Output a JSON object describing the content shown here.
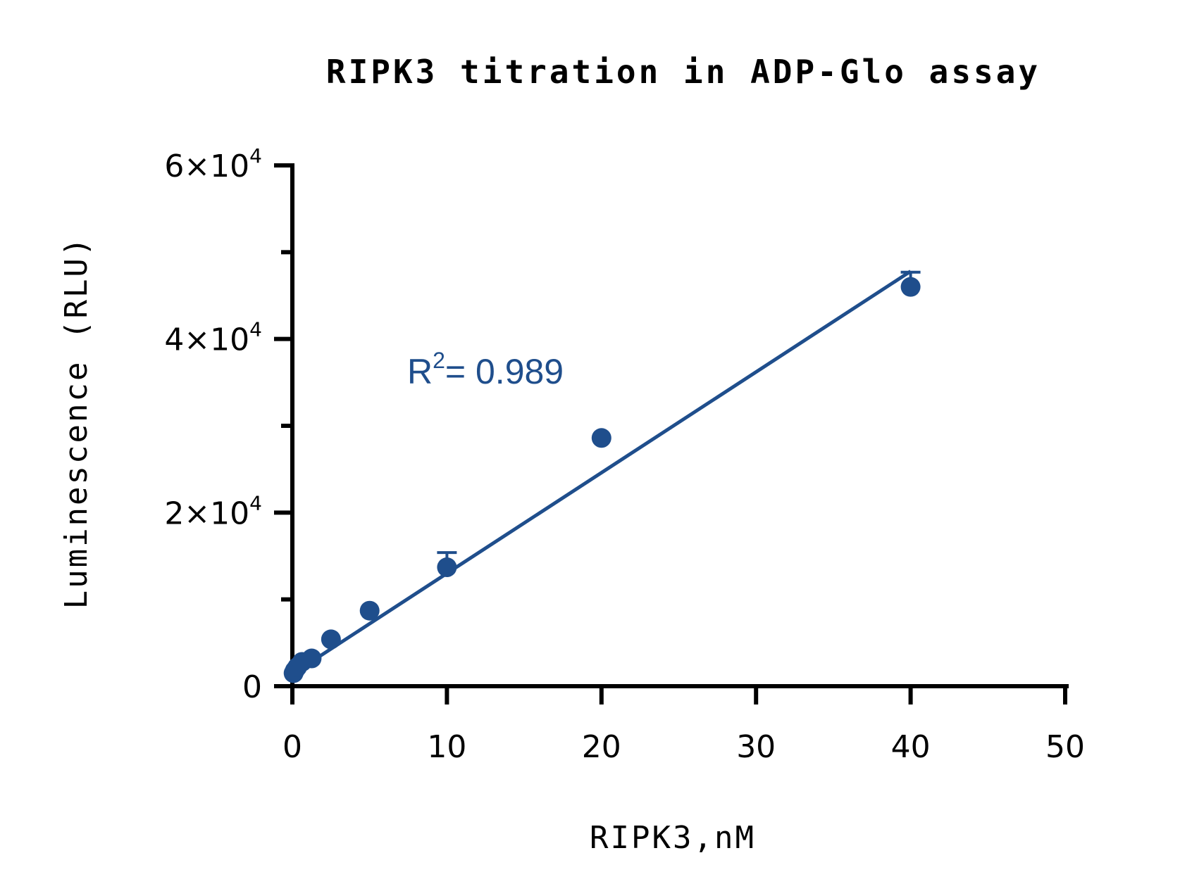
{
  "chart_data": {
    "type": "scatter",
    "title": "RIPK3 titration in ADP-Glo assay",
    "xlabel": "RIPK3,nM",
    "ylabel": "Luminescence (RLU)",
    "xlim": [
      0,
      50
    ],
    "ylim": [
      0,
      60000
    ],
    "xticks": [
      0,
      10,
      20,
      30,
      40,
      50
    ],
    "x_tick_labels": [
      "0",
      "10",
      "20",
      "30",
      "40",
      "50"
    ],
    "yticks": [
      0,
      20000,
      40000,
      60000
    ],
    "y_tick_labels": [
      {
        "mantissa": "0",
        "exponent": ""
      },
      {
        "mantissa": "2×10",
        "exponent": "4"
      },
      {
        "mantissa": "4×10",
        "exponent": "4"
      },
      {
        "mantissa": "6×10",
        "exponent": "4"
      }
    ],
    "y_minor_ticks": [
      10000,
      30000,
      50000
    ],
    "grid": false,
    "color": "#1f4e8c",
    "series": [
      {
        "x": [
          0.078,
          0.156,
          0.3125,
          0.625,
          1.25,
          2.5,
          5,
          10,
          20,
          40
        ],
        "y": [
          1500,
          1800,
          2200,
          2800,
          3200,
          5400,
          8700,
          13700,
          28600,
          46000
        ],
        "error_upper": [
          0,
          0,
          0,
          0,
          0,
          0,
          0,
          1700,
          0,
          1700
        ]
      }
    ],
    "fit": {
      "type": "linear",
      "x_range": [
        0,
        40
      ],
      "y_at_x0": 1400,
      "y_at_x40": 47800,
      "r2_label": "R",
      "r2_sup": "2",
      "r2_value": "= 0.989"
    }
  }
}
